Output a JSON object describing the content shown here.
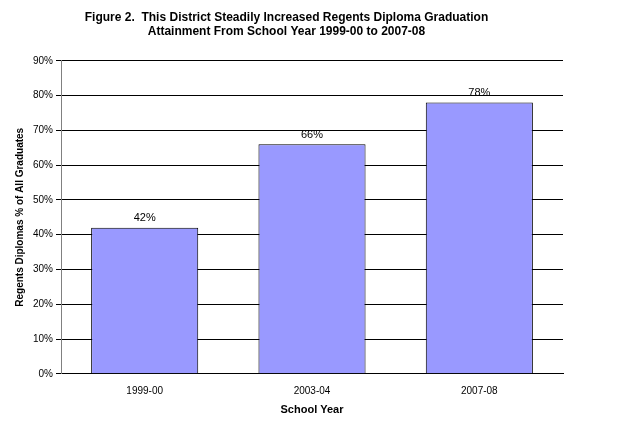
{
  "chart_data": {
    "type": "bar",
    "title": "Figure 2.  This District Steadily Increased Regents Diploma Graduation\nAttainment From School Year 1999-00 to 2007-08",
    "x_label": "School Year",
    "y_label": "Regents Diplomas % of All Graduates",
    "categories": [
      "1999-00",
      "2003-04",
      "2007-08"
    ],
    "values": [
      42,
      66,
      78
    ],
    "value_labels": [
      "42%",
      "66%",
      "78%"
    ],
    "color": "#9999ff",
    "ylim": [
      0,
      90
    ],
    "yticks": [
      {
        "value": 0,
        "label": "0%"
      },
      {
        "value": 10,
        "label": "10%"
      },
      {
        "value": 20,
        "label": "20%"
      },
      {
        "value": 30,
        "label": "30%"
      },
      {
        "value": 40,
        "label": "40%"
      },
      {
        "value": 50,
        "label": "50%"
      },
      {
        "value": 60,
        "label": "60%"
      },
      {
        "value": 70,
        "label": "70%"
      },
      {
        "value": 80,
        "label": "80%"
      },
      {
        "value": 90,
        "label": "90%"
      }
    ],
    "grid": true,
    "data_labels": true
  }
}
